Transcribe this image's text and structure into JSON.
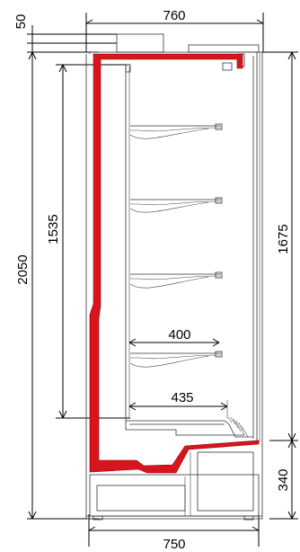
{
  "colors": {
    "insulation": "#d8151e",
    "line": "#000000",
    "background": "#ffffff"
  },
  "dimensions": {
    "top_width": "760",
    "canopy_offset": "50",
    "total_height": "2050",
    "shelf_zone_height": "1535",
    "opening_height": "1675",
    "base_height": "340",
    "shelf_depth_upper": "400",
    "shelf_depth_lower": "435",
    "bottom_width": "750"
  }
}
